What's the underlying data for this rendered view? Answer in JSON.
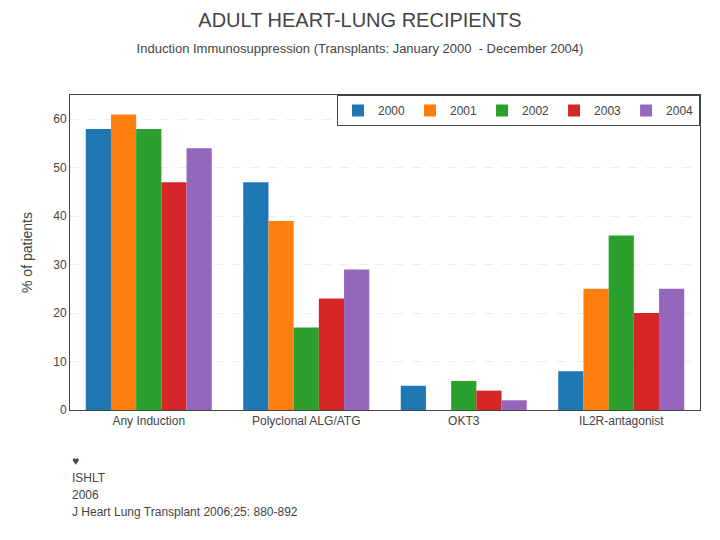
{
  "chart_data": {
    "type": "bar",
    "title": "ADULT HEART-LUNG RECIPIENTS",
    "subtitle": "Induction Immunosuppression (Transplants: January 2000  - December 2004)",
    "ylabel": "% of patients",
    "categories": [
      "Any Induction",
      "Polyclonal ALG/ATG",
      "OKT3",
      "IL2R-antagonist"
    ],
    "series": [
      {
        "name": "2000",
        "values": [
          58,
          47,
          5,
          8
        ]
      },
      {
        "name": "2001",
        "values": [
          61,
          39,
          0,
          25
        ]
      },
      {
        "name": "2002",
        "values": [
          58,
          17,
          6,
          36
        ]
      },
      {
        "name": "2003",
        "values": [
          47,
          23,
          4,
          20
        ]
      },
      {
        "name": "2004",
        "values": [
          54,
          29,
          2,
          25
        ]
      }
    ],
    "ylim": [
      0,
      65
    ],
    "yticks": [
      0,
      10,
      20,
      30,
      40,
      50,
      60
    ],
    "grid": true,
    "legend": "upper right",
    "annotations": [
      "♥",
      "ISHLT",
      "2006",
      "J Heart Lung Transplant 2006;25: 880-892"
    ]
  }
}
